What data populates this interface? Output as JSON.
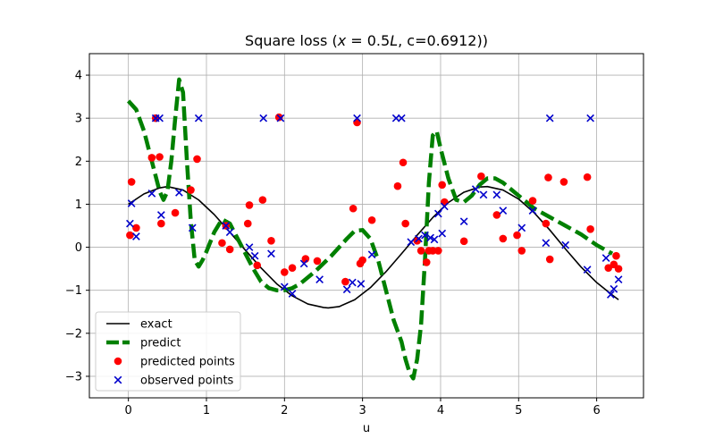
{
  "chart_data": {
    "type": "line",
    "title": "Square loss (x = 0.5L, c=0.6912))",
    "title_parts": {
      "prefix": "Square loss (",
      "x_var": "x",
      "eq": " = 0.5",
      "L_var": "L",
      "suffix": ", c=0.6912))"
    },
    "xlabel": "u",
    "ylabel": "",
    "xlim": [
      -0.5,
      6.6
    ],
    "ylim": [
      -3.5,
      4.5
    ],
    "xticks": [
      0,
      1,
      2,
      3,
      4,
      5,
      6
    ],
    "yticks": [
      -3,
      -2,
      -1,
      0,
      1,
      2,
      3,
      4
    ],
    "xtick_labels": [
      "0",
      "1",
      "2",
      "3",
      "4",
      "5",
      "6"
    ],
    "ytick_labels": [
      "−3",
      "−2",
      "−1",
      "0",
      "1",
      "2",
      "3",
      "4"
    ],
    "grid": true,
    "legend_position": "lower-left",
    "series": [
      {
        "name": "exact",
        "kind": "line",
        "color": "#000000",
        "x": [
          0.0,
          0.2,
          0.4,
          0.5,
          0.7,
          0.9,
          1.1,
          1.3,
          1.5,
          1.7,
          1.9,
          2.1,
          2.3,
          2.5,
          2.56,
          2.7,
          2.9,
          3.1,
          3.3,
          3.5,
          3.7,
          3.9,
          4.1,
          4.3,
          4.5,
          4.6,
          4.8,
          5.0,
          5.2,
          5.4,
          5.6,
          5.8,
          6.0,
          6.2,
          6.28
        ],
        "y": [
          1.0,
          1.24,
          1.38,
          1.41,
          1.33,
          1.1,
          0.76,
          0.35,
          -0.07,
          -0.48,
          -0.85,
          -1.13,
          -1.32,
          -1.4,
          -1.41,
          -1.38,
          -1.22,
          -0.94,
          -0.57,
          -0.15,
          0.28,
          0.69,
          1.04,
          1.28,
          1.4,
          1.41,
          1.33,
          1.12,
          0.8,
          0.4,
          -0.04,
          -0.46,
          -0.82,
          -1.11,
          -1.22
        ]
      },
      {
        "name": "predict",
        "kind": "line",
        "color": "#008000",
        "x": [
          0.0,
          0.1,
          0.2,
          0.3,
          0.4,
          0.45,
          0.5,
          0.55,
          0.6,
          0.65,
          0.7,
          0.75,
          0.8,
          0.85,
          0.9,
          0.95,
          1.0,
          1.1,
          1.2,
          1.3,
          1.4,
          1.5,
          1.6,
          1.7,
          1.8,
          1.9,
          2.0,
          2.1,
          2.2,
          2.4,
          2.6,
          2.8,
          2.9,
          3.0,
          3.1,
          3.2,
          3.3,
          3.4,
          3.5,
          3.55,
          3.6,
          3.65,
          3.7,
          3.75,
          3.8,
          3.85,
          3.9,
          3.95,
          4.0,
          4.1,
          4.2,
          4.3,
          4.4,
          4.5,
          4.6,
          4.7,
          4.8,
          5.0,
          5.2,
          5.4,
          5.6,
          5.8,
          6.0,
          6.1,
          6.2
        ],
        "y": [
          3.4,
          3.2,
          2.7,
          2.0,
          1.3,
          1.1,
          1.3,
          2.0,
          3.0,
          3.9,
          3.6,
          2.0,
          0.6,
          -0.3,
          -0.45,
          -0.3,
          -0.1,
          0.35,
          0.65,
          0.55,
          0.2,
          -0.15,
          -0.5,
          -0.8,
          -0.95,
          -1.0,
          -1.0,
          -0.95,
          -0.85,
          -0.55,
          -0.2,
          0.2,
          0.38,
          0.4,
          0.2,
          -0.3,
          -1.0,
          -1.7,
          -2.2,
          -2.6,
          -2.9,
          -3.05,
          -2.6,
          -1.8,
          -0.3,
          1.5,
          2.6,
          2.7,
          2.3,
          1.6,
          1.1,
          1.05,
          1.2,
          1.45,
          1.6,
          1.6,
          1.5,
          1.2,
          0.9,
          0.7,
          0.5,
          0.3,
          0.05,
          -0.05,
          -0.15
        ]
      },
      {
        "name": "predicted points",
        "kind": "scatter",
        "marker": "circle",
        "color": "#ff0000",
        "x": [
          0.02,
          0.04,
          0.1,
          0.3,
          0.35,
          0.4,
          0.42,
          0.6,
          0.8,
          0.88,
          1.2,
          1.25,
          1.3,
          1.53,
          1.55,
          1.65,
          1.72,
          1.83,
          1.93,
          2.0,
          2.1,
          2.27,
          2.42,
          2.78,
          2.88,
          2.93,
          2.97,
          3.0,
          3.12,
          3.45,
          3.52,
          3.55,
          3.7,
          3.75,
          3.82,
          3.85,
          3.9,
          3.97,
          4.02,
          4.05,
          4.3,
          4.52,
          4.72,
          4.8,
          4.98,
          5.04,
          5.18,
          5.35,
          5.38,
          5.4,
          5.58,
          5.88,
          5.92,
          6.15,
          6.22,
          6.25,
          6.28
        ],
        "y": [
          0.28,
          1.52,
          0.45,
          2.08,
          3.0,
          2.1,
          0.55,
          0.8,
          1.33,
          2.05,
          0.1,
          0.5,
          -0.05,
          0.55,
          0.98,
          -0.42,
          1.1,
          0.15,
          3.02,
          -0.58,
          -0.48,
          -0.27,
          -0.32,
          -0.8,
          0.9,
          2.9,
          -0.38,
          -0.3,
          0.63,
          1.42,
          1.97,
          0.55,
          0.15,
          -0.08,
          -0.35,
          -0.08,
          -0.08,
          -0.08,
          1.45,
          1.05,
          0.14,
          1.65,
          0.75,
          0.2,
          0.28,
          -0.08,
          1.08,
          0.55,
          1.62,
          -0.28,
          1.52,
          1.63,
          0.42,
          -0.48,
          -0.4,
          -0.2,
          -0.5
        ]
      },
      {
        "name": "observed points",
        "kind": "scatter",
        "marker": "x",
        "color": "#0000cc",
        "x": [
          0.02,
          0.04,
          0.1,
          0.3,
          0.35,
          0.4,
          0.42,
          0.65,
          0.82,
          0.9,
          1.25,
          1.3,
          1.55,
          1.62,
          1.73,
          1.83,
          1.95,
          2.0,
          2.1,
          2.25,
          2.45,
          2.8,
          2.87,
          2.93,
          2.98,
          3.12,
          3.43,
          3.5,
          3.62,
          3.72,
          3.8,
          3.87,
          3.92,
          3.97,
          4.02,
          4.05,
          4.3,
          4.45,
          4.55,
          4.72,
          4.8,
          5.04,
          5.18,
          5.35,
          5.4,
          5.6,
          5.88,
          5.92,
          6.12,
          6.18,
          6.22,
          6.28
        ],
        "y": [
          0.55,
          1.02,
          0.25,
          1.25,
          3.0,
          3.0,
          0.75,
          1.27,
          0.45,
          3.0,
          0.5,
          0.35,
          0.0,
          -0.2,
          3.0,
          -0.15,
          3.0,
          -0.92,
          -1.08,
          -0.38,
          -0.75,
          -0.98,
          -0.82,
          3.0,
          -0.85,
          -0.17,
          3.0,
          3.0,
          0.12,
          0.2,
          0.28,
          0.22,
          0.18,
          0.78,
          0.32,
          0.95,
          0.6,
          1.35,
          1.22,
          1.22,
          0.85,
          0.45,
          0.85,
          0.1,
          3.0,
          0.05,
          -0.52,
          3.0,
          -0.25,
          -1.1,
          -0.97,
          -0.75
        ]
      }
    ]
  }
}
